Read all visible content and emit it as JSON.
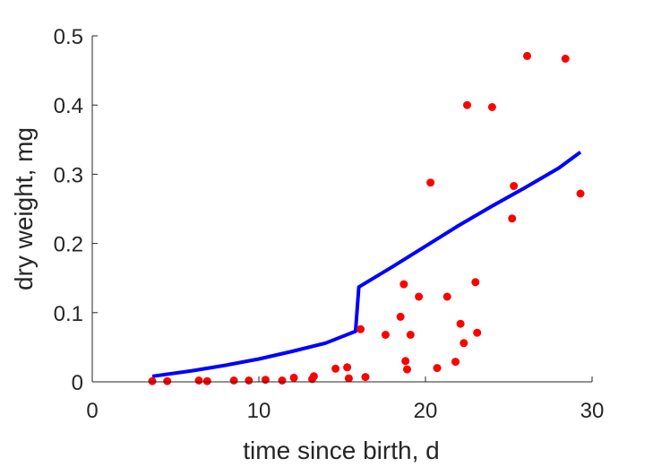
{
  "chart_data": {
    "type": "scatter",
    "xlabel": "time since birth, d",
    "ylabel": "dry weight, mg",
    "xlim": [
      0,
      30
    ],
    "ylim": [
      0,
      0.5
    ],
    "xticks": [
      "0",
      "10",
      "20",
      "30"
    ],
    "yticks": [
      "0",
      "0.1",
      "0.2",
      "0.3",
      "0.4",
      "0.5"
    ],
    "grid": false,
    "colors": {
      "points": "#ff0000",
      "line": "#0000ff",
      "axis": "#262626"
    },
    "series": [
      {
        "type": "scatter",
        "points": [
          [
            3.6,
            0.001
          ],
          [
            4.5,
            0.001
          ],
          [
            6.4,
            0.002
          ],
          [
            6.9,
            0.001
          ],
          [
            8.5,
            0.002
          ],
          [
            9.4,
            0.002
          ],
          [
            10.4,
            0.003
          ],
          [
            11.4,
            0.002
          ],
          [
            12.1,
            0.006
          ],
          [
            13.2,
            0.004
          ],
          [
            13.3,
            0.008
          ],
          [
            14.6,
            0.019
          ],
          [
            15.3,
            0.021
          ],
          [
            15.4,
            0.005
          ],
          [
            16.1,
            0.076
          ],
          [
            16.4,
            0.007
          ],
          [
            17.6,
            0.068
          ],
          [
            18.5,
            0.094
          ],
          [
            18.7,
            0.141
          ],
          [
            18.8,
            0.03
          ],
          [
            18.9,
            0.018
          ],
          [
            19.1,
            0.068
          ],
          [
            19.6,
            0.123
          ],
          [
            20.3,
            0.288
          ],
          [
            20.7,
            0.02
          ],
          [
            21.3,
            0.123
          ],
          [
            21.8,
            0.029
          ],
          [
            22.1,
            0.084
          ],
          [
            22.3,
            0.056
          ],
          [
            22.5,
            0.4
          ],
          [
            23.0,
            0.144
          ],
          [
            23.1,
            0.071
          ],
          [
            24.0,
            0.397
          ],
          [
            25.2,
            0.236
          ],
          [
            25.3,
            0.283
          ],
          [
            26.1,
            0.471
          ],
          [
            28.4,
            0.467
          ],
          [
            29.3,
            0.272
          ]
        ]
      },
      {
        "type": "line",
        "points": [
          [
            3.6,
            0.008
          ],
          [
            6.0,
            0.016
          ],
          [
            8.0,
            0.024
          ],
          [
            10.0,
            0.033
          ],
          [
            12.0,
            0.044
          ],
          [
            14.0,
            0.056
          ],
          [
            15.8,
            0.073
          ],
          [
            16.0,
            0.137
          ],
          [
            18.0,
            0.166
          ],
          [
            20.0,
            0.196
          ],
          [
            22.0,
            0.226
          ],
          [
            24.0,
            0.254
          ],
          [
            26.0,
            0.281
          ],
          [
            28.0,
            0.309
          ],
          [
            29.3,
            0.332
          ]
        ]
      }
    ]
  }
}
